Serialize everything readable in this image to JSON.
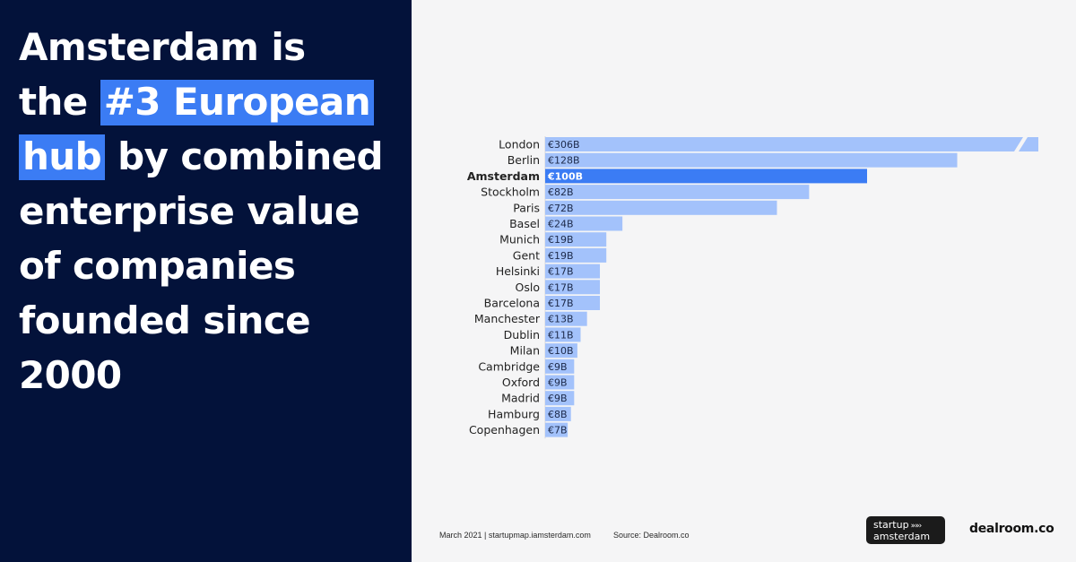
{
  "headline": {
    "line1": "Amsterdam is",
    "line2_pre": "the",
    "line2_highlight": "#3 European",
    "line3_highlight": "hub",
    "line3_post": "by combined",
    "line4": "enterprise value",
    "line5": "of companies",
    "line6": "founded since",
    "line7": "2000"
  },
  "chart_data": {
    "type": "bar",
    "orientation": "horizontal",
    "title": "",
    "xlabel": "",
    "ylabel": "",
    "categories": [
      "London",
      "Berlin",
      "Amsterdam",
      "Stockholm",
      "Paris",
      "Basel",
      "Munich",
      "Gent",
      "Helsinki",
      "Oslo",
      "Barcelona",
      "Manchester",
      "Dublin",
      "Milan",
      "Cambridge",
      "Oxford",
      "Madrid",
      "Hamburg",
      "Copenhagen"
    ],
    "values": [
      306,
      128,
      100,
      82,
      72,
      24,
      19,
      19,
      17,
      17,
      17,
      13,
      11,
      10,
      9,
      9,
      9,
      8,
      7
    ],
    "labels": [
      "€306B",
      "€128B",
      "€100B",
      "€82B",
      "€72B",
      "€24B",
      "€19B",
      "€19B",
      "€17B",
      "€17B",
      "€17B",
      "€13B",
      "€11B",
      "€10B",
      "€9B",
      "€9B",
      "€9B",
      "€8B",
      "€7B"
    ],
    "highlight": "Amsterdam",
    "axis_break_on": "London",
    "grid": false
  },
  "colors": {
    "bar": "#a3c2fb",
    "bar_highlight": "#3b7cf4",
    "left_panel": "#03123a",
    "highlight_bg": "#3b7cf4"
  },
  "footer": {
    "date_source": "March 2021  | startupmap.iamsterdam.com",
    "source": "Source: Dealroom.co"
  },
  "logos": {
    "startup_line1": "startup",
    "startup_arrows": "»»›",
    "startup_line2": "amsterdam",
    "dealroom": "dealroom.co"
  }
}
